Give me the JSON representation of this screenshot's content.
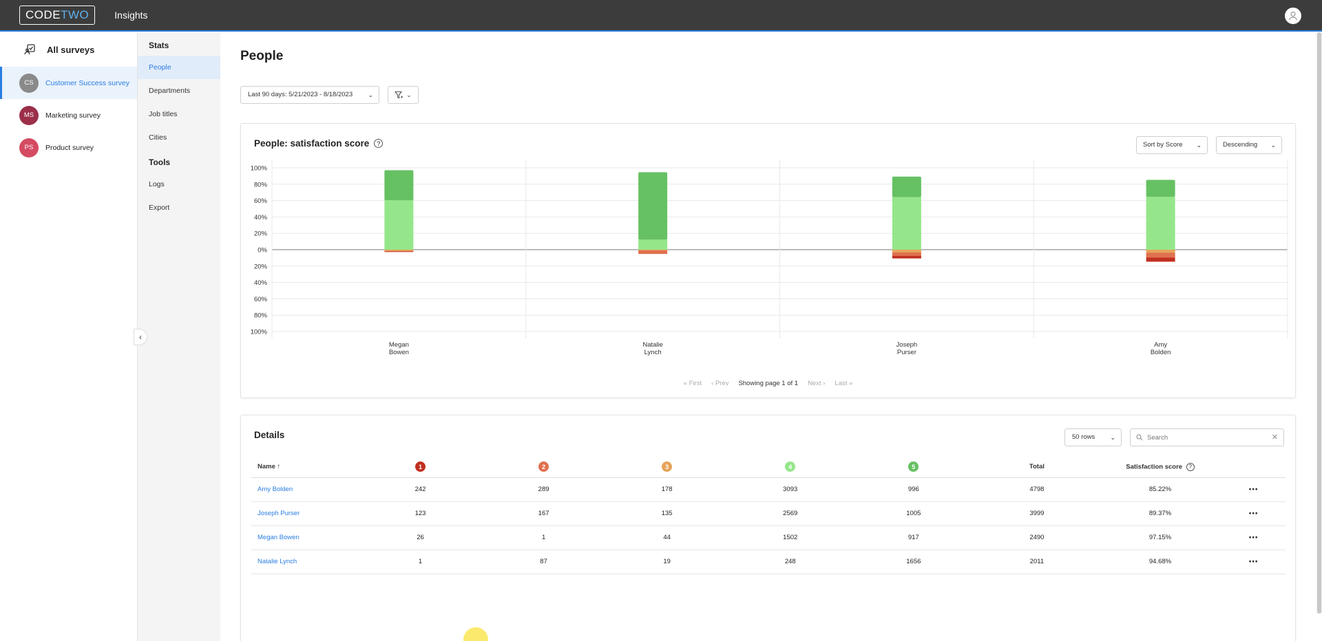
{
  "topbar": {
    "logo_code": "CODE",
    "logo_two": "TWO",
    "app_name": "Insights"
  },
  "survey_sidebar": {
    "all_surveys_label": "All surveys",
    "surveys": [
      {
        "initials": "CS",
        "label": "Customer Success survey",
        "color": "#8a8a8a",
        "active": true
      },
      {
        "initials": "MS",
        "label": "Marketing survey",
        "color": "#9c2f4a",
        "active": false
      },
      {
        "initials": "PS",
        "label": "Product survey",
        "color": "#d44b62",
        "active": false
      }
    ]
  },
  "stats_sidebar": {
    "stats_heading": "Stats",
    "stats_links": [
      "People",
      "Departments",
      "Job titles",
      "Cities"
    ],
    "tools_heading": "Tools",
    "tools_links": [
      "Logs",
      "Export"
    ]
  },
  "page": {
    "title": "People",
    "date_filter": "Last 90 days: 5/21/2023 - 8/18/2023"
  },
  "chart_card": {
    "title": "People: satisfaction score",
    "sort_by": "Sort by Score",
    "order": "Descending",
    "pager": {
      "first": "First",
      "prev": "Prev",
      "status": "Showing page 1 of 1",
      "next": "Next",
      "last": "Last"
    }
  },
  "chart_data": {
    "type": "bar",
    "stacked": true,
    "diverging": true,
    "categories": [
      "Megan\nBowen",
      "Natalie\nLynch",
      "Joseph\nPurser",
      "Amy\nBolden"
    ],
    "y_tick_labels": [
      "100%",
      "80%",
      "60%",
      "40%",
      "20%",
      "0%",
      "20%",
      "40%",
      "60%",
      "80%",
      "100%"
    ],
    "ylim": [
      -100,
      100
    ],
    "series": [
      {
        "name": "5",
        "color": "#66c163",
        "values": [
          36.8,
          82.3,
          25.1,
          20.8
        ]
      },
      {
        "name": "4",
        "color": "#95e68a",
        "values": [
          60.3,
          12.3,
          64.2,
          64.5
        ]
      },
      {
        "name": "3",
        "color": "#e6a45a",
        "values": [
          -1.8,
          -0.9,
          -3.4,
          -3.7
        ]
      },
      {
        "name": "2",
        "color": "#e0704f",
        "values": [
          -0.04,
          -4.3,
          -4.2,
          -6.0
        ]
      },
      {
        "name": "1",
        "color": "#c0301f",
        "values": [
          -1.0,
          -0.05,
          -3.1,
          -5.0
        ]
      }
    ],
    "grid": true
  },
  "details": {
    "title": "Details",
    "rows_select": "50 rows",
    "search_placeholder": "Search",
    "columns": {
      "name": "Name ↑",
      "r1": "1",
      "r2": "2",
      "r3": "3",
      "r4": "4",
      "r5": "5",
      "total": "Total",
      "score": "Satisfaction score"
    },
    "rating_colors": [
      "#c0301f",
      "#e0704f",
      "#e6a45a",
      "#95e68a",
      "#66c163"
    ],
    "rows": [
      {
        "name": "Amy Bolden",
        "r1": "242",
        "r2": "289",
        "r3": "178",
        "r4": "3093",
        "r5": "996",
        "total": "4798",
        "score": "85.22%"
      },
      {
        "name": "Joseph Purser",
        "r1": "123",
        "r2": "167",
        "r3": "135",
        "r4": "2569",
        "r5": "1005",
        "total": "3999",
        "score": "89.37%"
      },
      {
        "name": "Megan Bowen",
        "r1": "26",
        "r2": "1",
        "r3": "44",
        "r4": "1502",
        "r5": "917",
        "total": "2490",
        "score": "97.15%"
      },
      {
        "name": "Natalie Lynch",
        "r1": "1",
        "r2": "87",
        "r3": "19",
        "r4": "248",
        "r5": "1656",
        "total": "2011",
        "score": "94.68%"
      }
    ]
  }
}
